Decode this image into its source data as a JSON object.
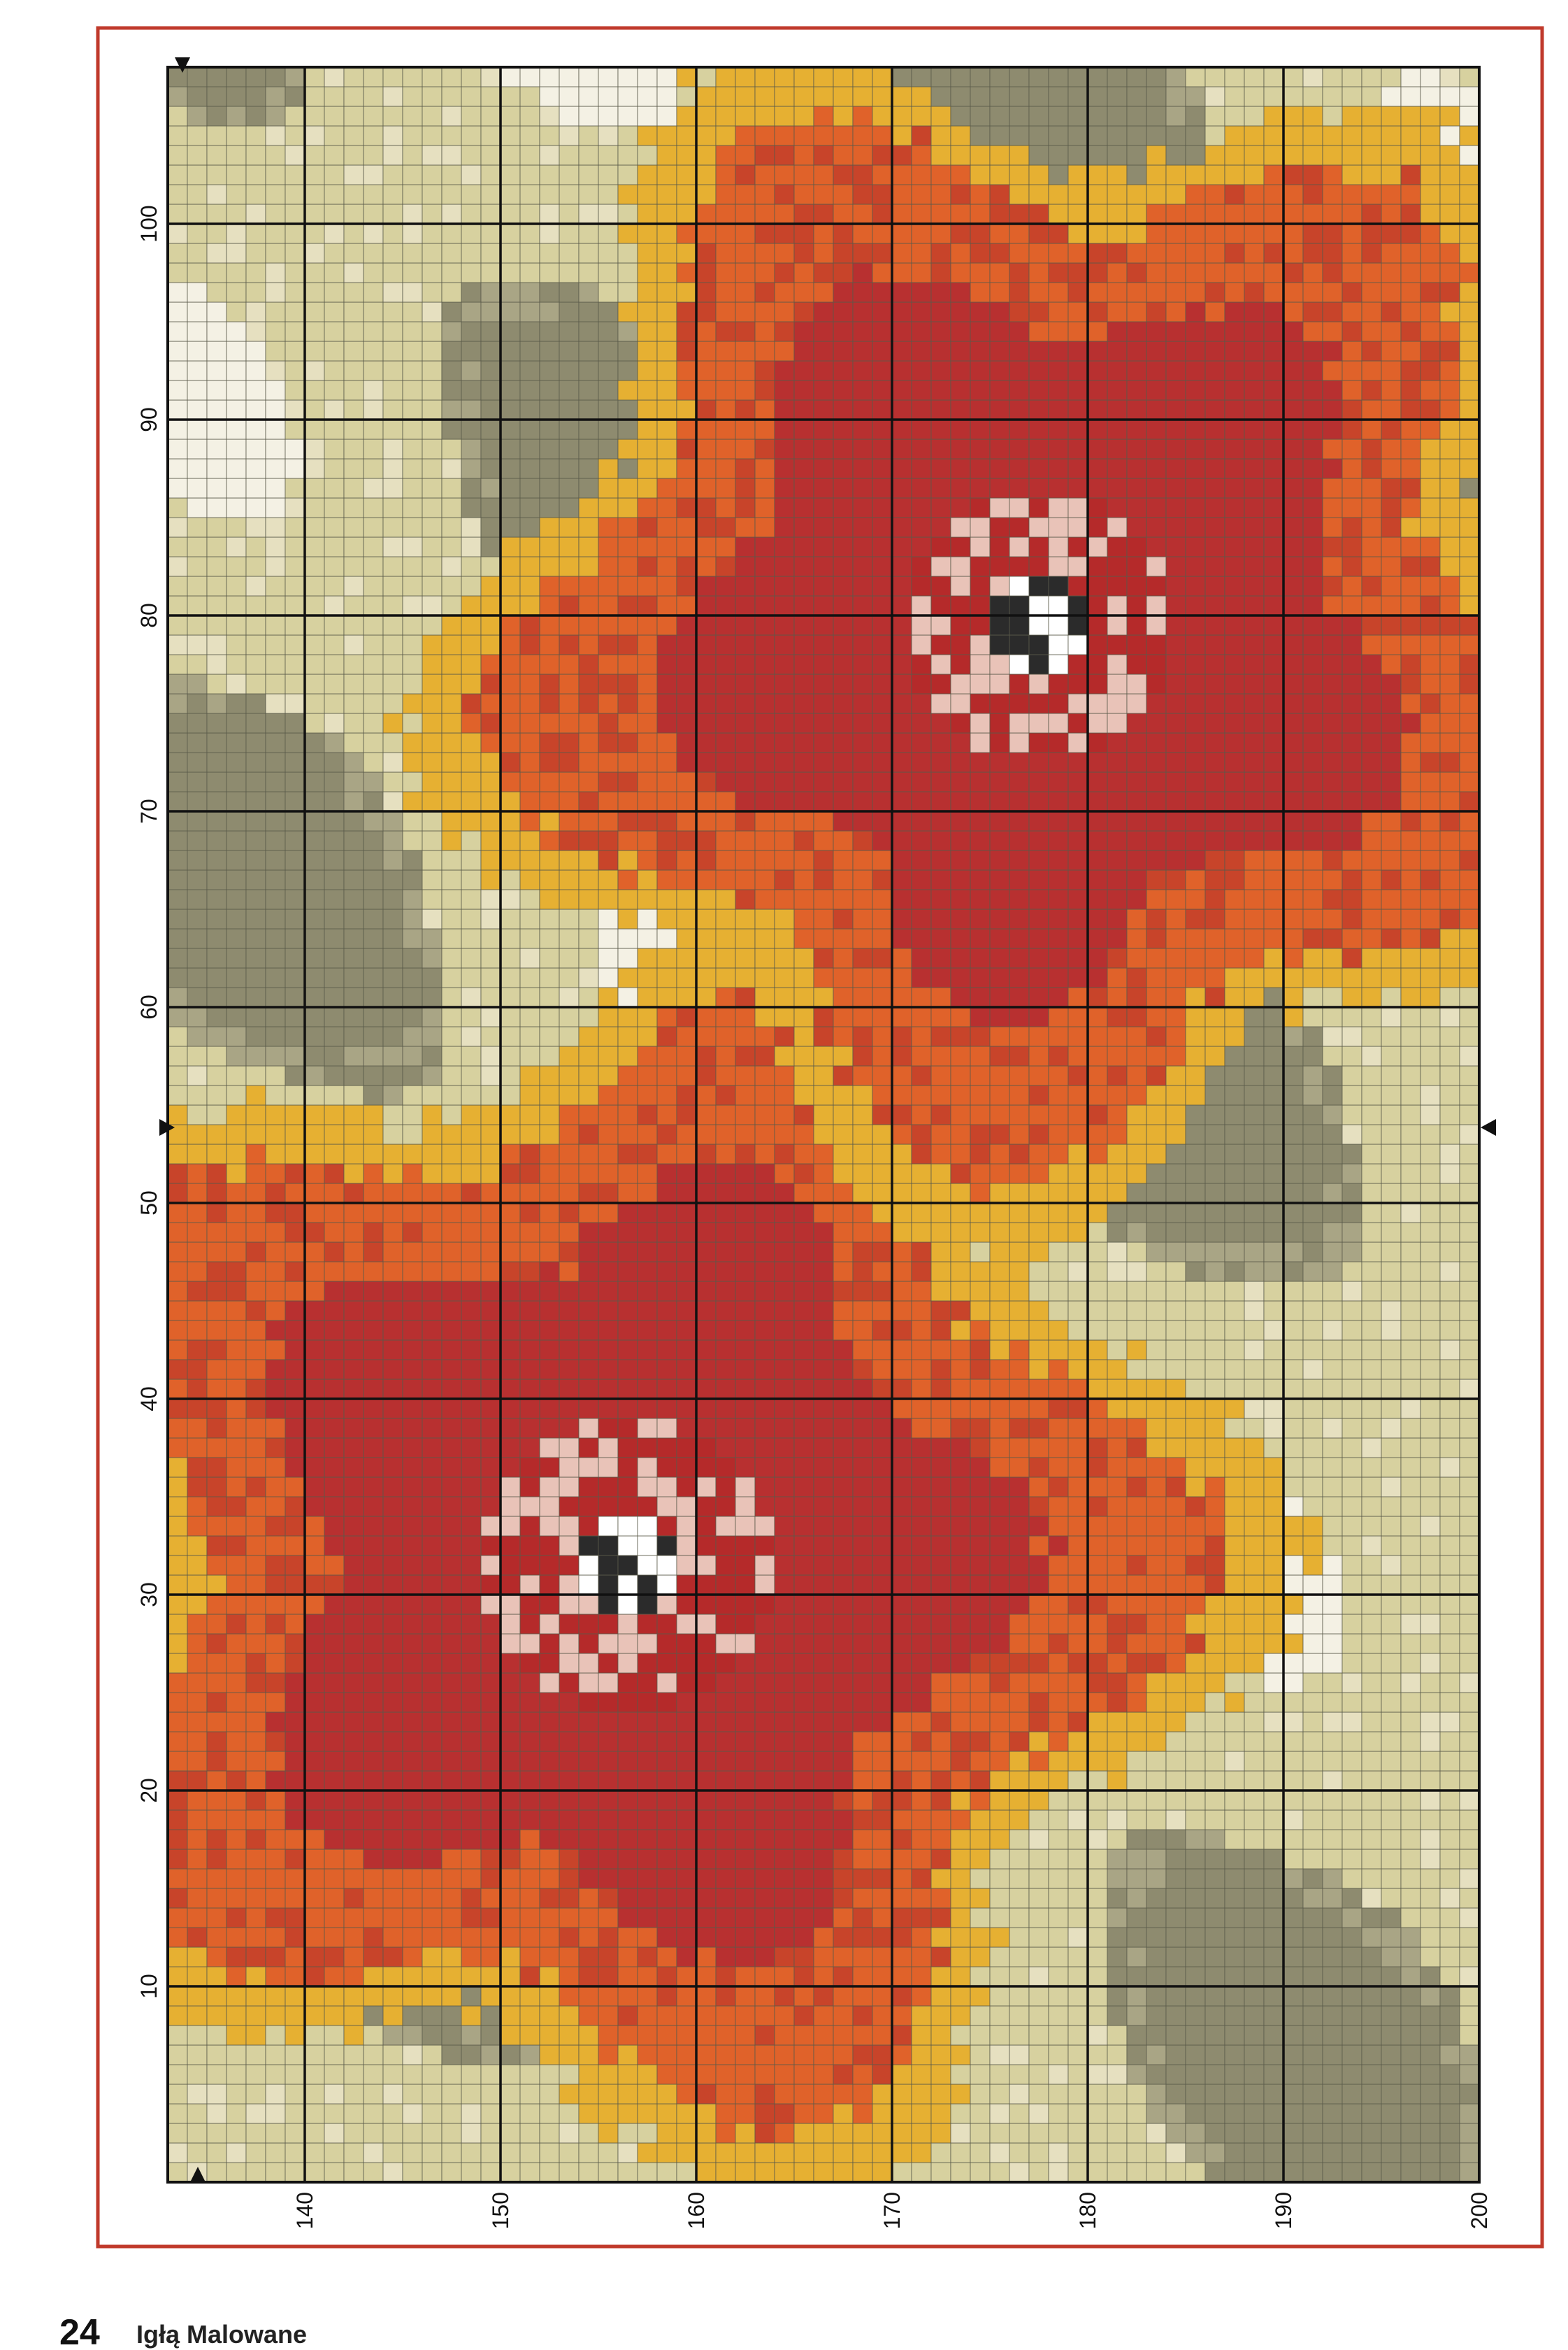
{
  "page": {
    "number": "24",
    "title": "Igłą Malowane"
  },
  "axis": {
    "x_labels": [
      140,
      150,
      160,
      170,
      180,
      190,
      200
    ],
    "y_labels": [
      10,
      20,
      30,
      40,
      50,
      60,
      70,
      80,
      90,
      100
    ]
  }
}
